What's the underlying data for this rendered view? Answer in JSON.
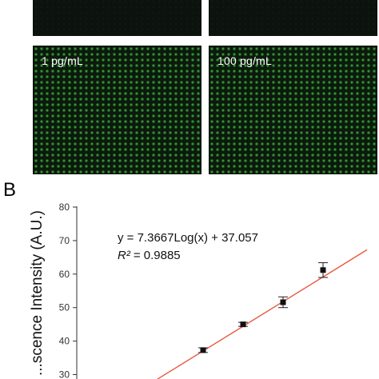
{
  "panels": [
    {
      "label": ""
    },
    {
      "label": ""
    },
    {
      "label": "1 pg/mL"
    },
    {
      "label": "100 pg/mL"
    }
  ],
  "section_label": "B",
  "chart_data": {
    "type": "scatter",
    "ylabel": "...scence Intensity (A.U.)",
    "yticks": [
      30,
      40,
      50,
      60,
      70,
      80
    ],
    "ylim": [
      30,
      80
    ],
    "equation": "y = 7.3667Log(x) + 37.057",
    "r2_label": "R²",
    "r2_value": "= 0.9885",
    "fit": {
      "slope": 7.3667,
      "intercept": 37.057,
      "scale": "log10"
    },
    "points": [
      {
        "x": 0,
        "y": 37.3,
        "err": 0.7
      },
      {
        "x": 1,
        "y": 45.0,
        "err": 0.6
      },
      {
        "x": 2,
        "y": 51.6,
        "err": 1.6
      },
      {
        "x": 3,
        "y": 61.2,
        "err": 2.2
      }
    ],
    "colors": {
      "fit_line": "#e8573f",
      "marker": "#111111"
    }
  }
}
